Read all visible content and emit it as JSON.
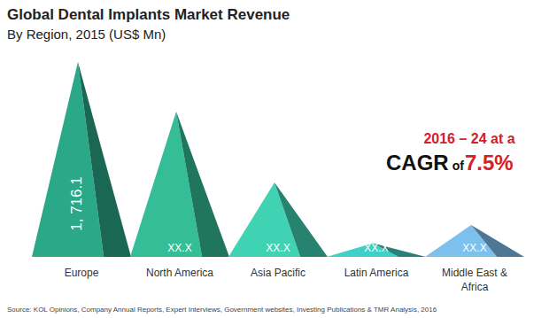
{
  "chart_data": {
    "type": "pyramid",
    "title": "Global Dental Implants Market Revenue",
    "subtitle": "By Region, 2015 (US$ Mn)",
    "categories": [
      "Europe",
      "North America",
      "Asia Pacific",
      "Latin America",
      "Middle East & Africa"
    ],
    "values": [
      1716.1,
      1280,
      655,
      120,
      280
    ],
    "value_labels": [
      "1, 716.1",
      "XX.X",
      "XX.X",
      "XX.X",
      "XX.X"
    ],
    "data_labels": true,
    "tick_labels": false,
    "colors": [
      "#2aa888",
      "#34bd96",
      "#3fd3b4",
      "#3fd1c8",
      "#7cc0ee"
    ],
    "annotations": [
      "2016 – 24 at a",
      "CAGR",
      "of",
      "7.5%"
    ],
    "source": "Source: KOL Opinions, Company Annual Reports, Expert Interviews, Government  websites, Investing Publications & TMR Analysis, 2016"
  }
}
